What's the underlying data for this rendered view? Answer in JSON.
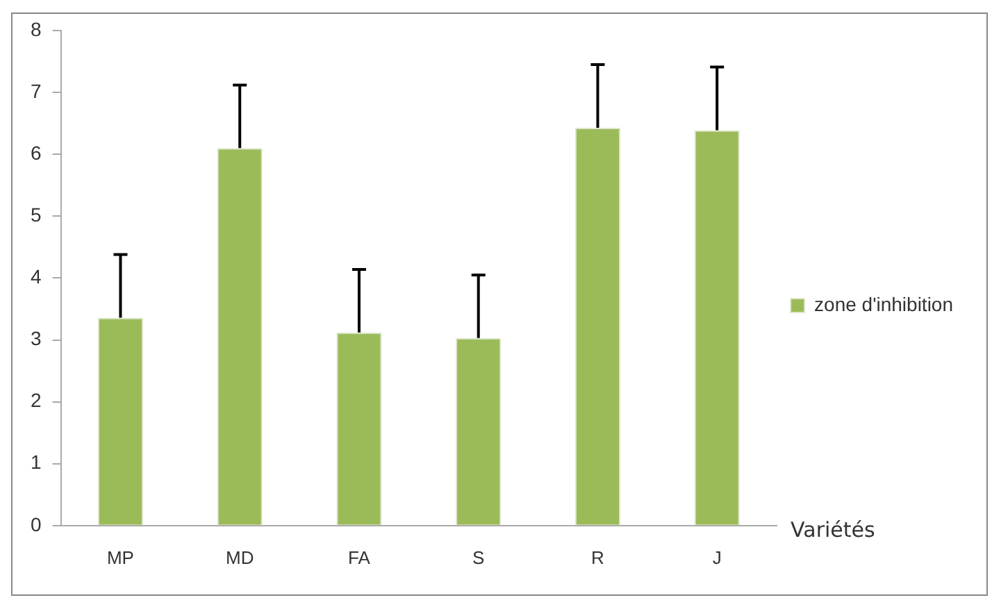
{
  "chart_data": {
    "type": "bar",
    "xlabel": "Variétés",
    "categories": [
      "MP",
      "MD",
      "FA",
      "S",
      "R",
      "J"
    ],
    "series": [
      {
        "name": "zone d'inhibition",
        "color": "#9bbb59",
        "values": [
          3.36,
          6.1,
          3.12,
          3.03,
          6.43,
          6.39
        ],
        "errors": [
          1.02,
          1.02,
          1.02,
          1.02,
          1.02,
          1.02
        ]
      }
    ],
    "ylim": [
      0,
      8
    ],
    "yticks": [
      0,
      1,
      2,
      3,
      4,
      5,
      6,
      7,
      8
    ],
    "grid": false,
    "legend": "right"
  }
}
